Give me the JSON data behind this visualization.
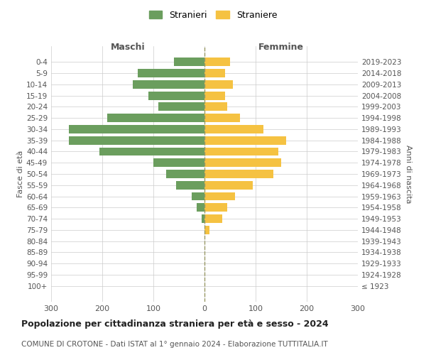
{
  "age_groups": [
    "100+",
    "95-99",
    "90-94",
    "85-89",
    "80-84",
    "75-79",
    "70-74",
    "65-69",
    "60-64",
    "55-59",
    "50-54",
    "45-49",
    "40-44",
    "35-39",
    "30-34",
    "25-29",
    "20-24",
    "15-19",
    "10-14",
    "5-9",
    "0-4"
  ],
  "birth_years": [
    "≤ 1923",
    "1924-1928",
    "1929-1933",
    "1934-1938",
    "1939-1943",
    "1944-1948",
    "1949-1953",
    "1954-1958",
    "1959-1963",
    "1964-1968",
    "1969-1973",
    "1974-1978",
    "1979-1983",
    "1984-1988",
    "1989-1993",
    "1994-1998",
    "1999-2003",
    "2004-2008",
    "2009-2013",
    "2014-2018",
    "2019-2023"
  ],
  "males": [
    0,
    0,
    0,
    0,
    0,
    0,
    5,
    15,
    25,
    55,
    75,
    100,
    205,
    265,
    265,
    190,
    90,
    110,
    140,
    130,
    60
  ],
  "females": [
    0,
    0,
    0,
    0,
    0,
    10,
    35,
    45,
    60,
    95,
    135,
    150,
    145,
    160,
    115,
    70,
    45,
    40,
    55,
    40,
    50
  ],
  "male_color": "#6b9e5e",
  "female_color": "#f5c242",
  "background_color": "#ffffff",
  "grid_color": "#cccccc",
  "title": "Popolazione per cittadinanza straniera per età e sesso - 2024",
  "subtitle": "COMUNE DI CROTONE - Dati ISTAT al 1° gennaio 2024 - Elaborazione TUTTITALIA.IT",
  "xlabel_left": "Maschi",
  "xlabel_right": "Femmine",
  "ylabel_left": "Fasce di età",
  "ylabel_right": "Anni di nascita",
  "legend_male": "Stranieri",
  "legend_female": "Straniere",
  "xlim": 300
}
